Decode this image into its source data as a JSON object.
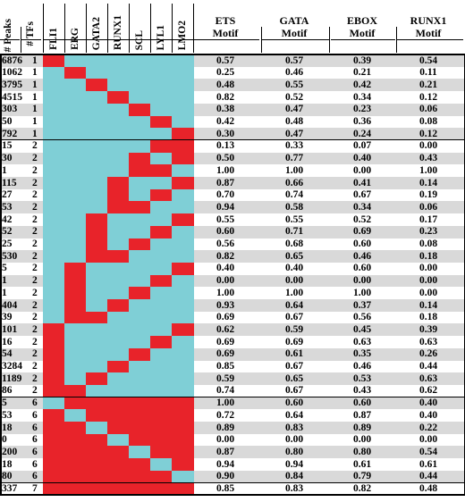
{
  "headers": {
    "peaks": "# Peaks",
    "tfs": "# TFs",
    "tf_names": [
      "FLI1",
      "ERG",
      "GATA2",
      "RUNX1",
      "SCL",
      "LYL1",
      "LMO2"
    ],
    "motifs": [
      {
        "line1": "ETS",
        "line2": "Motif"
      },
      {
        "line1": "GATA",
        "line2": "Motif"
      },
      {
        "line1": "EBOX",
        "line2": "Motif"
      },
      {
        "line1": "RUNX1",
        "line2": "Motif"
      }
    ]
  },
  "colors": {
    "present": "#e8232a",
    "absent": "#7fcfd6",
    "row_shade": "#d9d9d9",
    "row_plain": "#ffffff",
    "border": "#000000"
  },
  "rows": [
    {
      "peaks": "6876",
      "tfs": "1",
      "combo": [
        1,
        0,
        0,
        0,
        0,
        0,
        0
      ],
      "ets": "0.57",
      "gata": "0.57",
      "ebox": "0.39",
      "runx1": "0.54"
    },
    {
      "peaks": "1062",
      "tfs": "1",
      "combo": [
        0,
        1,
        0,
        0,
        0,
        0,
        0
      ],
      "ets": "0.25",
      "gata": "0.46",
      "ebox": "0.21",
      "runx1": "0.11"
    },
    {
      "peaks": "3795",
      "tfs": "1",
      "combo": [
        0,
        0,
        1,
        0,
        0,
        0,
        0
      ],
      "ets": "0.48",
      "gata": "0.55",
      "ebox": "0.42",
      "runx1": "0.21"
    },
    {
      "peaks": "4515",
      "tfs": "1",
      "combo": [
        0,
        0,
        0,
        1,
        0,
        0,
        0
      ],
      "ets": "0.82",
      "gata": "0.52",
      "ebox": "0.34",
      "runx1": "0.12"
    },
    {
      "peaks": "303",
      "tfs": "1",
      "combo": [
        0,
        0,
        0,
        0,
        1,
        0,
        0
      ],
      "ets": "0.38",
      "gata": "0.47",
      "ebox": "0.23",
      "runx1": "0.06"
    },
    {
      "peaks": "50",
      "tfs": "1",
      "combo": [
        0,
        0,
        0,
        0,
        0,
        1,
        0
      ],
      "ets": "0.42",
      "gata": "0.48",
      "ebox": "0.36",
      "runx1": "0.08"
    },
    {
      "peaks": "792",
      "tfs": "1",
      "combo": [
        0,
        0,
        0,
        0,
        0,
        0,
        1
      ],
      "ets": "0.30",
      "gata": "0.47",
      "ebox": "0.24",
      "runx1": "0.12"
    },
    {
      "peaks": "15",
      "tfs": "2",
      "combo": [
        0,
        0,
        0,
        0,
        0,
        1,
        1
      ],
      "ets": "0.13",
      "gata": "0.33",
      "ebox": "0.07",
      "runx1": "0.00"
    },
    {
      "peaks": "30",
      "tfs": "2",
      "combo": [
        0,
        0,
        0,
        0,
        1,
        0,
        1
      ],
      "ets": "0.50",
      "gata": "0.77",
      "ebox": "0.40",
      "runx1": "0.43"
    },
    {
      "peaks": "1",
      "tfs": "2",
      "combo": [
        0,
        0,
        0,
        0,
        1,
        1,
        0
      ],
      "ets": "1.00",
      "gata": "1.00",
      "ebox": "0.00",
      "runx1": "1.00"
    },
    {
      "peaks": "115",
      "tfs": "2",
      "combo": [
        0,
        0,
        0,
        1,
        0,
        0,
        1
      ],
      "ets": "0.87",
      "gata": "0.66",
      "ebox": "0.41",
      "runx1": "0.14"
    },
    {
      "peaks": "27",
      "tfs": "2",
      "combo": [
        0,
        0,
        0,
        1,
        0,
        1,
        0
      ],
      "ets": "0.70",
      "gata": "0.74",
      "ebox": "0.67",
      "runx1": "0.19"
    },
    {
      "peaks": "53",
      "tfs": "2",
      "combo": [
        0,
        0,
        0,
        1,
        1,
        0,
        0
      ],
      "ets": "0.94",
      "gata": "0.58",
      "ebox": "0.34",
      "runx1": "0.06"
    },
    {
      "peaks": "42",
      "tfs": "2",
      "combo": [
        0,
        0,
        1,
        0,
        0,
        0,
        1
      ],
      "ets": "0.55",
      "gata": "0.55",
      "ebox": "0.52",
      "runx1": "0.17"
    },
    {
      "peaks": "52",
      "tfs": "2",
      "combo": [
        0,
        0,
        1,
        0,
        0,
        1,
        0
      ],
      "ets": "0.60",
      "gata": "0.71",
      "ebox": "0.69",
      "runx1": "0.23"
    },
    {
      "peaks": "25",
      "tfs": "2",
      "combo": [
        0,
        0,
        1,
        0,
        1,
        0,
        0
      ],
      "ets": "0.56",
      "gata": "0.68",
      "ebox": "0.60",
      "runx1": "0.08"
    },
    {
      "peaks": "530",
      "tfs": "2",
      "combo": [
        0,
        0,
        1,
        1,
        0,
        0,
        0
      ],
      "ets": "0.82",
      "gata": "0.65",
      "ebox": "0.46",
      "runx1": "0.18"
    },
    {
      "peaks": "5",
      "tfs": "2",
      "combo": [
        0,
        1,
        0,
        0,
        0,
        0,
        1
      ],
      "ets": "0.40",
      "gata": "0.40",
      "ebox": "0.60",
      "runx1": "0.00"
    },
    {
      "peaks": "1",
      "tfs": "2",
      "combo": [
        0,
        1,
        0,
        0,
        0,
        1,
        0
      ],
      "ets": "0.00",
      "gata": "0.00",
      "ebox": "0.00",
      "runx1": "0.00"
    },
    {
      "peaks": "1",
      "tfs": "2",
      "combo": [
        0,
        1,
        0,
        0,
        1,
        0,
        0
      ],
      "ets": "1.00",
      "gata": "1.00",
      "ebox": "1.00",
      "runx1": "0.00"
    },
    {
      "peaks": "404",
      "tfs": "2",
      "combo": [
        0,
        1,
        0,
        1,
        0,
        0,
        0
      ],
      "ets": "0.93",
      "gata": "0.64",
      "ebox": "0.37",
      "runx1": "0.14"
    },
    {
      "peaks": "39",
      "tfs": "2",
      "combo": [
        0,
        1,
        1,
        0,
        0,
        0,
        0
      ],
      "ets": "0.69",
      "gata": "0.67",
      "ebox": "0.56",
      "runx1": "0.18"
    },
    {
      "peaks": "101",
      "tfs": "2",
      "combo": [
        1,
        0,
        0,
        0,
        0,
        0,
        1
      ],
      "ets": "0.62",
      "gata": "0.59",
      "ebox": "0.45",
      "runx1": "0.39"
    },
    {
      "peaks": "16",
      "tfs": "2",
      "combo": [
        1,
        0,
        0,
        0,
        0,
        1,
        0
      ],
      "ets": "0.69",
      "gata": "0.69",
      "ebox": "0.63",
      "runx1": "0.63"
    },
    {
      "peaks": "54",
      "tfs": "2",
      "combo": [
        1,
        0,
        0,
        0,
        1,
        0,
        0
      ],
      "ets": "0.69",
      "gata": "0.61",
      "ebox": "0.35",
      "runx1": "0.26"
    },
    {
      "peaks": "3284",
      "tfs": "2",
      "combo": [
        1,
        0,
        0,
        1,
        0,
        0,
        0
      ],
      "ets": "0.85",
      "gata": "0.67",
      "ebox": "0.46",
      "runx1": "0.44"
    },
    {
      "peaks": "1189",
      "tfs": "2",
      "combo": [
        1,
        0,
        1,
        0,
        0,
        0,
        0
      ],
      "ets": "0.59",
      "gata": "0.65",
      "ebox": "0.53",
      "runx1": "0.63"
    },
    {
      "peaks": "86",
      "tfs": "2",
      "combo": [
        1,
        1,
        0,
        0,
        0,
        0,
        0
      ],
      "ets": "0.74",
      "gata": "0.67",
      "ebox": "0.43",
      "runx1": "0.62"
    },
    {
      "peaks": "5",
      "tfs": "6",
      "combo": [
        0,
        1,
        1,
        1,
        1,
        1,
        1
      ],
      "ets": "1.00",
      "gata": "0.60",
      "ebox": "0.60",
      "runx1": "0.40"
    },
    {
      "peaks": "53",
      "tfs": "6",
      "combo": [
        1,
        0,
        1,
        1,
        1,
        1,
        1
      ],
      "ets": "0.72",
      "gata": "0.64",
      "ebox": "0.87",
      "runx1": "0.40"
    },
    {
      "peaks": "18",
      "tfs": "6",
      "combo": [
        1,
        1,
        0,
        1,
        1,
        1,
        1
      ],
      "ets": "0.89",
      "gata": "0.83",
      "ebox": "0.89",
      "runx1": "0.22"
    },
    {
      "peaks": "0",
      "tfs": "6",
      "combo": [
        1,
        1,
        1,
        0,
        1,
        1,
        1
      ],
      "ets": "0.00",
      "gata": "0.00",
      "ebox": "0.00",
      "runx1": "0.00"
    },
    {
      "peaks": "200",
      "tfs": "6",
      "combo": [
        1,
        1,
        1,
        1,
        0,
        1,
        1
      ],
      "ets": "0.87",
      "gata": "0.80",
      "ebox": "0.80",
      "runx1": "0.54"
    },
    {
      "peaks": "18",
      "tfs": "6",
      "combo": [
        1,
        1,
        1,
        1,
        1,
        0,
        1
      ],
      "ets": "0.94",
      "gata": "0.94",
      "ebox": "0.61",
      "runx1": "0.61"
    },
    {
      "peaks": "80",
      "tfs": "6",
      "combo": [
        1,
        1,
        1,
        1,
        1,
        1,
        0
      ],
      "ets": "0.90",
      "gata": "0.84",
      "ebox": "0.79",
      "runx1": "0.44"
    },
    {
      "peaks": "337",
      "tfs": "7",
      "combo": [
        1,
        1,
        1,
        1,
        1,
        1,
        1
      ],
      "ets": "0.85",
      "gata": "0.83",
      "ebox": "0.82",
      "runx1": "0.48"
    }
  ]
}
